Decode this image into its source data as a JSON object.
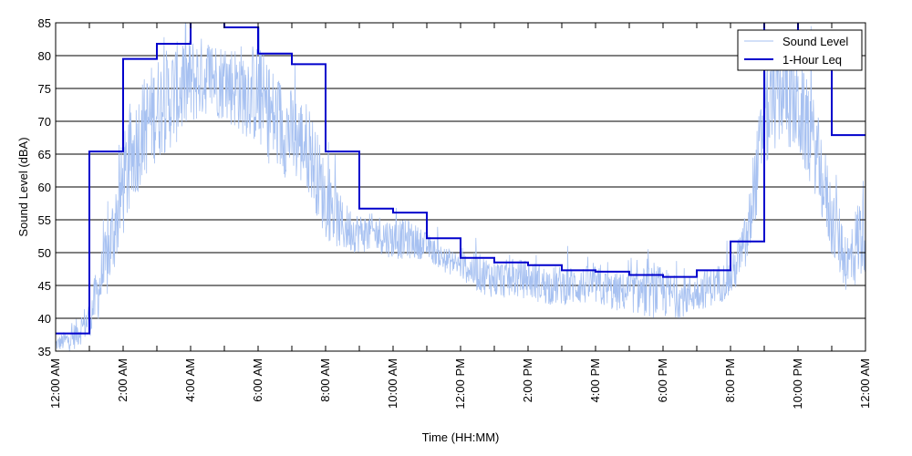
{
  "chart_data": {
    "type": "line",
    "title": "",
    "xlabel": "Time (HH:MM)",
    "ylabel": "Sound Level (dBA)",
    "xlim": [
      0,
      24
    ],
    "ylim": [
      35,
      85
    ],
    "x_ticks": [
      {
        "x": 0,
        "label": "12:00 AM"
      },
      {
        "x": 2,
        "label": "2:00 AM"
      },
      {
        "x": 4,
        "label": "4:00 AM"
      },
      {
        "x": 6,
        "label": "6:00 AM"
      },
      {
        "x": 8,
        "label": "8:00 AM"
      },
      {
        "x": 10,
        "label": "10:00 AM"
      },
      {
        "x": 12,
        "label": "12:00 PM"
      },
      {
        "x": 14,
        "label": "2:00 PM"
      },
      {
        "x": 16,
        "label": "4:00 PM"
      },
      {
        "x": 18,
        "label": "6:00 PM"
      },
      {
        "x": 20,
        "label": "8:00 PM"
      },
      {
        "x": 22,
        "label": "10:00 PM"
      },
      {
        "x": 24,
        "label": "12:00 AM"
      }
    ],
    "y_ticks": [
      35,
      40,
      45,
      50,
      55,
      60,
      65,
      70,
      75,
      80,
      85
    ],
    "grid": {
      "horizontal": true,
      "vertical": false
    },
    "legend": {
      "position": "top-right"
    },
    "series": [
      {
        "name": "Sound Level",
        "kind": "noisy-line",
        "color": "#a7c1f1",
        "x": [
          0,
          0.5,
          1,
          1.5,
          2,
          2.5,
          3,
          3.5,
          4,
          4.5,
          5,
          5.5,
          6,
          6.5,
          7,
          7.5,
          8,
          8.5,
          9,
          9.5,
          10,
          10.5,
          11,
          11.5,
          12,
          12.5,
          13,
          13.5,
          14,
          14.5,
          15,
          15.5,
          16,
          16.5,
          17,
          17.5,
          18,
          18.5,
          19,
          19.5,
          20,
          20.5,
          21,
          21.5,
          22,
          22.5,
          23,
          23.5,
          24
        ],
        "values": [
          36,
          37,
          40,
          48,
          60,
          68,
          72,
          74,
          76,
          77,
          76,
          75,
          74,
          70,
          68,
          66,
          58,
          54,
          53,
          53,
          52,
          52,
          51,
          49,
          48,
          47,
          46,
          46,
          46,
          45,
          45,
          45,
          45,
          44,
          44,
          44,
          44,
          43,
          44,
          45,
          46,
          52,
          70,
          75,
          72,
          66,
          55,
          48,
          55
        ],
        "spread": [
          1,
          2,
          3,
          6,
          8,
          8,
          8,
          8,
          7,
          6,
          6,
          7,
          8,
          8,
          7,
          7,
          6,
          4,
          3,
          3,
          3,
          3,
          2,
          2,
          2,
          3,
          3,
          3,
          3,
          3,
          3,
          3,
          3,
          3,
          3,
          4,
          4,
          3,
          3,
          3,
          3,
          5,
          8,
          8,
          8,
          7,
          6,
          5,
          8
        ]
      },
      {
        "name": "1-Hour Leq",
        "kind": "step",
        "color": "#0000cc",
        "x": [
          0,
          1,
          2,
          3,
          4,
          5,
          6,
          7,
          8,
          9,
          10,
          11,
          12,
          13,
          14,
          15,
          16,
          17,
          18,
          19,
          20,
          21,
          22,
          23,
          24
        ],
        "values": [
          37.7,
          65.4,
          79.5,
          81.8,
          85.2,
          84.3,
          80.3,
          78.7,
          65.4,
          56.7,
          56.1,
          52.2,
          49.2,
          48.5,
          48.1,
          47.3,
          47.1,
          46.6,
          46.3,
          47.3,
          51.7,
          85.5,
          79.7,
          67.9,
          67.9
        ]
      }
    ]
  }
}
